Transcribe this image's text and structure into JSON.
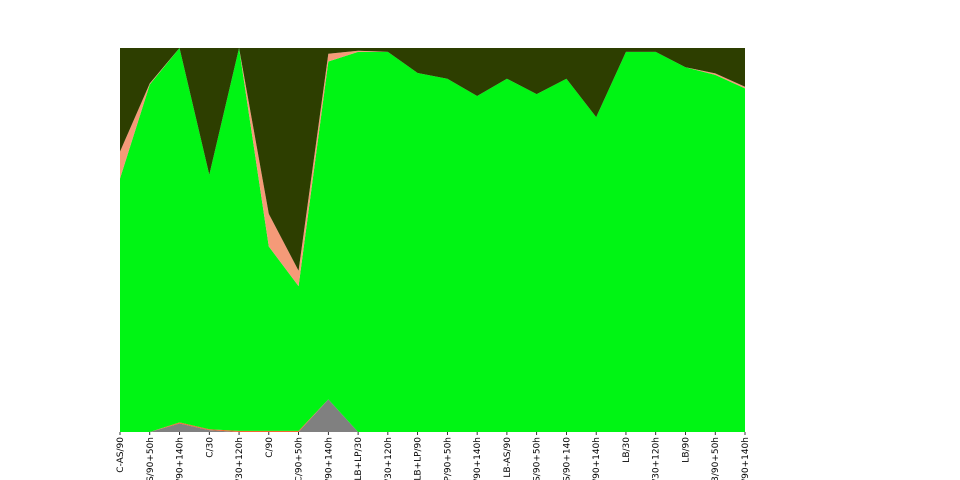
{
  "chart_data": {
    "type": "area",
    "stacked": true,
    "normalized": true,
    "title": "",
    "xlabel": "",
    "ylabel": "",
    "ylim": [
      0,
      1
    ],
    "grid": false,
    "legend": "none",
    "categories": [
      "C-AS/90",
      "S/90+50h",
      "/90+140h",
      "C/30",
      "/30+120h",
      "C/90",
      "C/90+50h",
      "/90+140h",
      "LB+LP/30",
      "/30+120h",
      "LB+LP/90",
      "P/90+50h",
      "/90+140h",
      "LB-AS/90",
      "S/90+50h",
      "S/90+140",
      "/90+140h",
      "LB/30",
      "/30+120h",
      "LB/90",
      "B/90+50h",
      "/90+140h"
    ],
    "series": [
      {
        "color": "#808080",
        "values": [
          0,
          0,
          0.022,
          0.005,
          0,
          0,
          0,
          0.085,
          0,
          0,
          0,
          0,
          0,
          0,
          0,
          0,
          0,
          0,
          0,
          0,
          0,
          0
        ]
      },
      {
        "color": "#f06a2e",
        "values": [
          0,
          0,
          0.003,
          0.002,
          0.003,
          0.003,
          0.003,
          0,
          0,
          0,
          0,
          0,
          0,
          0,
          0,
          0,
          0,
          0,
          0,
          0,
          0,
          0
        ]
      },
      {
        "color": "#00f514",
        "values": [
          0.66,
          0.905,
          0.975,
          0.663,
          0.997,
          0.48,
          0.377,
          0.88,
          0.99,
          0.99,
          0.935,
          0.92,
          0.875,
          0.92,
          0.88,
          0.92,
          0.82,
          0.99,
          0.99,
          0.95,
          0.93,
          0.895
        ]
      },
      {
        "color": "#f59a78",
        "values": [
          0.07,
          0.003,
          0,
          0,
          0,
          0.085,
          0.04,
          0.02,
          0.003,
          0,
          0,
          0,
          0,
          0,
          0,
          0,
          0,
          0,
          0,
          0,
          0.004,
          0.004
        ]
      },
      {
        "color": "#2d3e00",
        "values": [
          0.27,
          0.092,
          0,
          0.33,
          0,
          0.432,
          0.58,
          0.015,
          0.007,
          0.01,
          0.065,
          0.08,
          0.125,
          0.08,
          0.12,
          0.08,
          0.18,
          0.01,
          0.01,
          0.05,
          0.066,
          0.101
        ]
      }
    ]
  }
}
